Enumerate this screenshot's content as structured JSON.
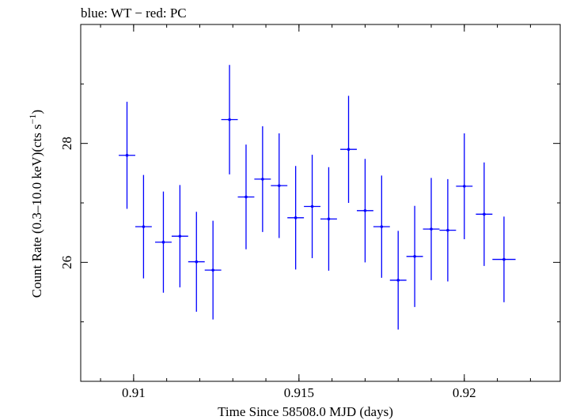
{
  "chart_data": {
    "type": "scatter",
    "title": "blue: WT − red: PC",
    "xlabel": "Time Since 58508.0 MJD (days)",
    "ylabel_main": "Count Rate (0.3–10.0 keV)(cts s",
    "ylabel_sup": "−1",
    "ylabel_close": ")",
    "xlim": [
      0.9084,
      0.9229
    ],
    "ylim": [
      24.0,
      30.0
    ],
    "x_ticks": [
      0.91,
      0.915,
      0.92
    ],
    "x_tick_labels": [
      "0.91",
      "0.915",
      "0.92"
    ],
    "x_minor_step": 0.001,
    "y_ticks": [
      26,
      28
    ],
    "y_tick_labels": [
      "26",
      "28"
    ],
    "y_minor_ticks": [
      25,
      27,
      29
    ],
    "series": [
      {
        "color": "#0000ff",
        "points": [
          {
            "x": 0.9098,
            "xerr": 0.00025,
            "y": 27.8,
            "yerr": 0.9
          },
          {
            "x": 0.9103,
            "xerr": 0.00025,
            "y": 26.6,
            "yerr": 0.87
          },
          {
            "x": 0.9109,
            "xerr": 0.00025,
            "y": 26.34,
            "yerr": 0.85
          },
          {
            "x": 0.9114,
            "xerr": 0.00025,
            "y": 26.44,
            "yerr": 0.86
          },
          {
            "x": 0.9119,
            "xerr": 0.00025,
            "y": 26.01,
            "yerr": 0.84
          },
          {
            "x": 0.9124,
            "xerr": 0.00025,
            "y": 25.87,
            "yerr": 0.83
          },
          {
            "x": 0.9129,
            "xerr": 0.00025,
            "y": 28.4,
            "yerr": 0.92
          },
          {
            "x": 0.9134,
            "xerr": 0.00025,
            "y": 27.1,
            "yerr": 0.88
          },
          {
            "x": 0.9139,
            "xerr": 0.00025,
            "y": 27.4,
            "yerr": 0.89
          },
          {
            "x": 0.9144,
            "xerr": 0.00025,
            "y": 27.29,
            "yerr": 0.88
          },
          {
            "x": 0.9149,
            "xerr": 0.00025,
            "y": 26.75,
            "yerr": 0.87
          },
          {
            "x": 0.9154,
            "xerr": 0.00025,
            "y": 26.94,
            "yerr": 0.87
          },
          {
            "x": 0.9159,
            "xerr": 0.00025,
            "y": 26.73,
            "yerr": 0.87
          },
          {
            "x": 0.9165,
            "xerr": 0.00025,
            "y": 27.9,
            "yerr": 0.9
          },
          {
            "x": 0.917,
            "xerr": 0.00025,
            "y": 26.87,
            "yerr": 0.87
          },
          {
            "x": 0.9175,
            "xerr": 0.00025,
            "y": 26.6,
            "yerr": 0.86
          },
          {
            "x": 0.918,
            "xerr": 0.00025,
            "y": 25.7,
            "yerr": 0.83
          },
          {
            "x": 0.9185,
            "xerr": 0.00025,
            "y": 26.1,
            "yerr": 0.85
          },
          {
            "x": 0.919,
            "xerr": 0.00025,
            "y": 26.56,
            "yerr": 0.86
          },
          {
            "x": 0.9195,
            "xerr": 0.00025,
            "y": 26.54,
            "yerr": 0.86
          },
          {
            "x": 0.92,
            "xerr": 0.00025,
            "y": 27.28,
            "yerr": 0.89
          },
          {
            "x": 0.9206,
            "xerr": 0.00025,
            "y": 26.81,
            "yerr": 0.87
          },
          {
            "x": 0.9212,
            "xerr": 0.00035,
            "y": 26.05,
            "yerr": 0.72
          }
        ]
      }
    ]
  }
}
